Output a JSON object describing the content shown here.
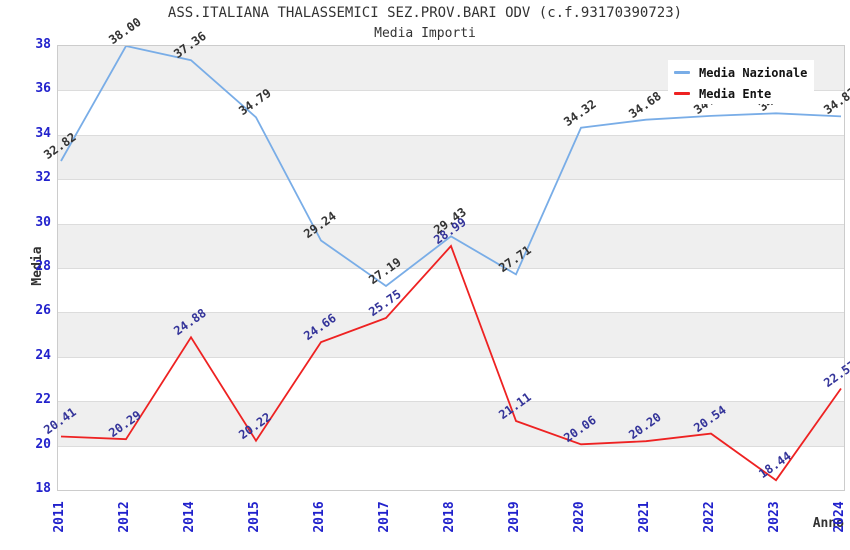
{
  "chart_data": {
    "type": "line",
    "title": "ASS.ITALIANA THALASSEMICI SEZ.PROV.BARI ODV (c.f.93170390723)",
    "subtitle": "Media Importi",
    "xlabel": "Anno",
    "ylabel": "Media",
    "ylim": [
      18,
      38
    ],
    "yticks": [
      18,
      20,
      22,
      24,
      26,
      28,
      30,
      32,
      34,
      36,
      38
    ],
    "grid": "horizontal gridlines every 2 units with alternating gray/white bands",
    "legend_position": "top-right",
    "categories": [
      "2011",
      "2012",
      "2014",
      "2015",
      "2016",
      "2017",
      "2018",
      "2019",
      "2020",
      "2021",
      "2022",
      "2023",
      "2024"
    ],
    "series": [
      {
        "name": "Media Nazionale",
        "color": "#79ADE7",
        "label_color": "#333333",
        "values": [
          32.82,
          38.0,
          37.36,
          34.79,
          29.24,
          27.19,
          29.43,
          27.71,
          34.32,
          34.68,
          34.85,
          34.97,
          34.83
        ],
        "note": "2022 and 2023 point labels are partially hidden behind the legend box; values estimated from line position"
      },
      {
        "name": "Media Ente",
        "color": "#EE2222",
        "label_color": "#333399",
        "values": [
          20.41,
          20.29,
          24.88,
          20.22,
          24.66,
          25.75,
          28.99,
          21.11,
          20.06,
          20.2,
          20.54,
          18.44,
          22.57
        ]
      }
    ],
    "colors": {
      "tick_label": "#2222cc",
      "title": "#333333",
      "band_gray": "#efefef",
      "gridline": "#dcdcdc",
      "plot_border": "#cccccc",
      "legend_background": "#ffffff"
    }
  }
}
